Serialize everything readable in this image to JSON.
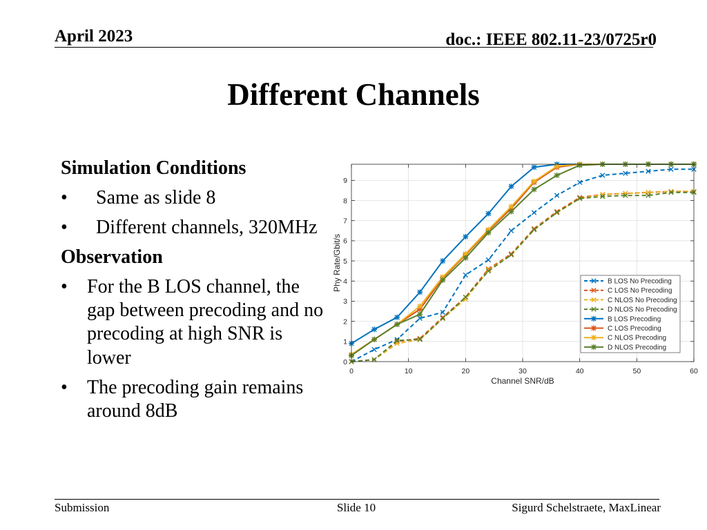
{
  "header": {
    "date": "April 2023",
    "doc_id": "doc.: IEEE 802.11-23/0725r0"
  },
  "title": "Different Channels",
  "body": {
    "bullet_symbol": "•",
    "simulation_heading": "Simulation Conditions",
    "simulation_bullets": [
      "Same as slide 8",
      "Different channels, 320MHz"
    ],
    "observation_heading": "Observation",
    "observation_bullets": [
      "For the B LOS channel, the gap between precoding and no precoding at high SNR is lower",
      "The precoding gain remains around 8dB"
    ]
  },
  "footer": {
    "left": "Submission",
    "center": "Slide 10",
    "right": "Sigurd Schelstraete, MaxLinear"
  },
  "chart_data": {
    "type": "line",
    "xlabel": "Channel SNR/dB",
    "ylabel": "Phy Rate/Gbit/s",
    "xlim": [
      0,
      60
    ],
    "ylim": [
      0,
      9.8
    ],
    "xticks": [
      0,
      10,
      20,
      30,
      40,
      50,
      60
    ],
    "yticks": [
      0,
      1,
      2,
      3,
      4,
      5,
      6,
      7,
      8,
      9
    ],
    "grid": true,
    "legend_position": "bottom-right",
    "x": [
      0,
      4,
      8,
      12,
      16,
      20,
      24,
      28,
      32,
      36,
      40,
      44,
      48,
      52,
      56,
      60
    ],
    "series": [
      {
        "name": "B LOS No Precoding",
        "color": "#0072BD",
        "line_style": "dashed",
        "marker": "x",
        "values": [
          0,
          0.6,
          1.1,
          2.15,
          2.45,
          4.3,
          5.05,
          6.5,
          7.4,
          8.25,
          8.9,
          9.25,
          9.35,
          9.45,
          9.55,
          9.55
        ]
      },
      {
        "name": "C LOS No Precoding",
        "color": "#D95319",
        "line_style": "dashed",
        "marker": "x",
        "values": [
          0,
          0.1,
          1.0,
          1.15,
          2.2,
          3.2,
          4.6,
          5.35,
          6.6,
          7.45,
          8.15,
          8.3,
          8.35,
          8.4,
          8.45,
          8.45
        ]
      },
      {
        "name": "C NLOS No Precoding",
        "color": "#EDB120",
        "line_style": "dashed",
        "marker": "x",
        "values": [
          0,
          0.1,
          0.9,
          1.1,
          2.15,
          3.1,
          4.55,
          5.3,
          6.55,
          7.4,
          8.1,
          8.3,
          8.35,
          8.4,
          8.45,
          8.45
        ]
      },
      {
        "name": "D NLOS No Precoding",
        "color": "#5A802A",
        "line_style": "dashed",
        "marker": "x",
        "values": [
          0,
          0.1,
          1.05,
          1.1,
          2.15,
          3.2,
          4.5,
          5.3,
          6.55,
          7.4,
          8.1,
          8.2,
          8.25,
          8.25,
          8.4,
          8.4
        ]
      },
      {
        "name": "B LOS Precoding",
        "color": "#0072BD",
        "line_style": "solid",
        "marker": "*",
        "values": [
          0.9,
          1.6,
          2.2,
          3.45,
          5.0,
          6.2,
          7.35,
          8.7,
          9.65,
          9.8,
          9.8,
          9.8,
          9.8,
          9.8,
          9.8,
          9.8
        ]
      },
      {
        "name": "C LOS Precoding",
        "color": "#D95319",
        "line_style": "solid",
        "marker": "*",
        "values": [
          0.35,
          1.1,
          1.85,
          2.6,
          4.15,
          5.3,
          6.5,
          7.6,
          8.9,
          9.65,
          9.8,
          9.8,
          9.8,
          9.8,
          9.8,
          9.8
        ]
      },
      {
        "name": "C NLOS Precoding",
        "color": "#EDB120",
        "line_style": "solid",
        "marker": "*",
        "values": [
          0.35,
          1.1,
          1.85,
          2.75,
          4.2,
          5.35,
          6.55,
          7.7,
          8.95,
          9.7,
          9.8,
          9.8,
          9.8,
          9.8,
          9.8,
          9.8
        ]
      },
      {
        "name": "D NLOS Precoding",
        "color": "#5A802A",
        "line_style": "solid",
        "marker": "*",
        "values": [
          0.3,
          1.1,
          1.85,
          2.35,
          4.05,
          5.15,
          6.4,
          7.45,
          8.55,
          9.25,
          9.75,
          9.8,
          9.8,
          9.8,
          9.8,
          9.8
        ]
      }
    ]
  }
}
